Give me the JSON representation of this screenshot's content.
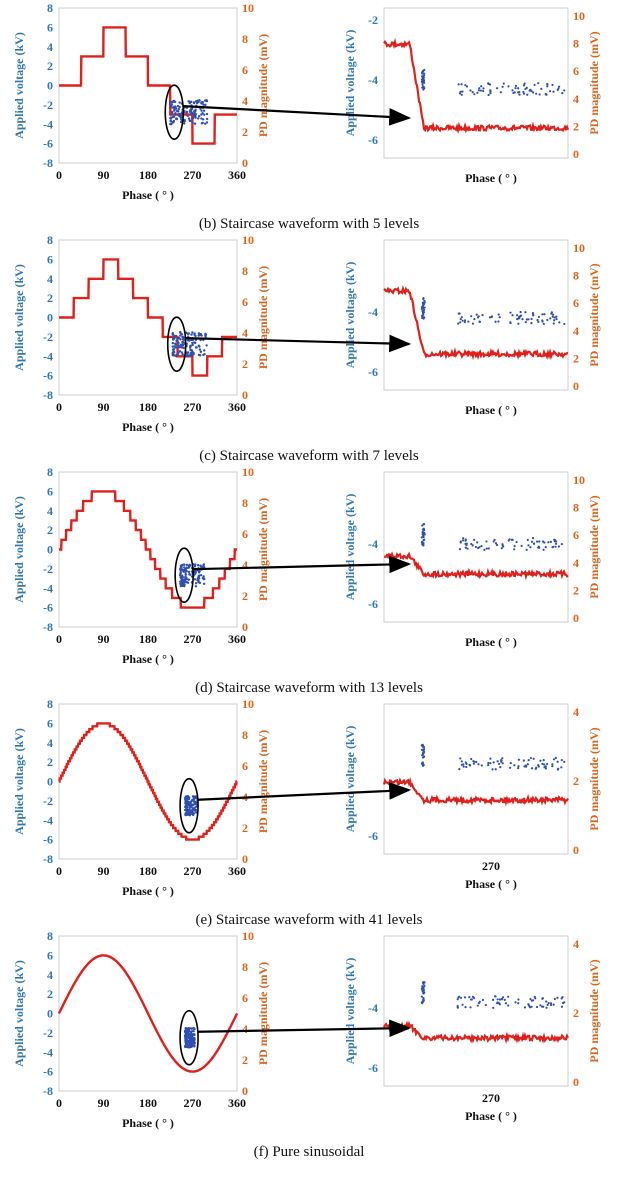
{
  "colors": {
    "voltage": "#e0201b",
    "pd": "#2f4fb0",
    "left_axis": "#2f78b4",
    "right_axis": "#d9641c",
    "arrow": "#000000"
  },
  "labels": {
    "y_left": "Applied voltage (kV)",
    "y_right": "PD magnitude (mV)",
    "x": "Phase ( ° )"
  },
  "chart_data": [
    {
      "id": "b",
      "type": "line",
      "caption": "(b) Staircase waveform with 5 levels",
      "levels": 5,
      "overview": {
        "xlim": [
          0,
          360
        ],
        "xticks": [
          0,
          90,
          180,
          270,
          360
        ],
        "ylim": [
          -8,
          8
        ],
        "yticks": [
          8,
          6,
          4,
          2,
          0,
          -2,
          -4,
          -6,
          -8
        ],
        "y2lim": [
          0,
          10
        ],
        "y2ticks": [
          10,
          8,
          6,
          4,
          2,
          0
        ],
        "voltage_series": {
          "name": "Applied voltage",
          "peak": 6,
          "step_values": [
            0,
            3,
            6,
            3,
            0,
            -3,
            -6,
            -3,
            0
          ]
        },
        "pd_cluster": {
          "phase_range": [
            225,
            300
          ],
          "voltage_range": [
            -4,
            -1.5
          ]
        }
      },
      "zoom": {
        "yticks": [
          -2,
          -4,
          -6
        ],
        "y2ticks": [
          10,
          8,
          6,
          4,
          2,
          0
        ],
        "pd_level": -4.3,
        "drop_from": -2.8,
        "drop_to": -5.6
      }
    },
    {
      "id": "c",
      "type": "line",
      "caption": "(c) Staircase waveform with 7 levels",
      "levels": 7,
      "overview": {
        "xlim": [
          0,
          360
        ],
        "xticks": [
          0,
          90,
          180,
          270,
          360
        ],
        "ylim": [
          -8,
          8
        ],
        "yticks": [
          8,
          6,
          4,
          2,
          0,
          -2,
          -4,
          -6,
          -8
        ],
        "y2lim": [
          0,
          10
        ],
        "y2ticks": [
          10,
          8,
          6,
          4,
          2,
          0
        ],
        "voltage_series": {
          "name": "Applied voltage",
          "peak": 6,
          "step_values": [
            0,
            2,
            4,
            6,
            4,
            2,
            0,
            -2,
            -4,
            -6,
            -4,
            -2,
            0
          ]
        },
        "pd_cluster": {
          "phase_range": [
            230,
            300
          ],
          "voltage_range": [
            -4,
            -1.5
          ]
        }
      },
      "zoom": {
        "yticks": [
          -4,
          -6
        ],
        "y2ticks": [
          10,
          8,
          6,
          4,
          2,
          0
        ],
        "pd_level": -4.2,
        "drop_from": -3.3,
        "drop_to": -5.4
      }
    },
    {
      "id": "d",
      "type": "line",
      "caption": "(d) Staircase waveform with 13 levels",
      "levels": 13,
      "overview": {
        "xlim": [
          0,
          360
        ],
        "xticks": [
          0,
          90,
          180,
          270,
          360
        ],
        "ylim": [
          -8,
          8
        ],
        "yticks": [
          8,
          6,
          4,
          2,
          0,
          -2,
          -4,
          -6,
          -8
        ],
        "y2lim": [
          0,
          10
        ],
        "y2ticks": [
          10,
          8,
          6,
          4,
          2,
          0
        ],
        "voltage_series": {
          "name": "Applied voltage",
          "peak": 6,
          "steps_per_quarter": 6
        },
        "pd_cluster": {
          "phase_range": [
            245,
            295
          ],
          "voltage_range": [
            -3.8,
            -1.5
          ]
        }
      },
      "zoom": {
        "yticks": [
          -4,
          -6
        ],
        "y2ticks": [
          10,
          8,
          6,
          4,
          2,
          0
        ],
        "pd_level": -4.0,
        "drop_from": -4.4,
        "drop_to": -5.0
      }
    },
    {
      "id": "e",
      "type": "line",
      "caption": "(e) Staircase waveform with 41 levels",
      "levels": 41,
      "overview": {
        "xlim": [
          0,
          360
        ],
        "xticks": [
          0,
          90,
          180,
          270,
          360
        ],
        "ylim": [
          -8,
          8
        ],
        "yticks": [
          8,
          6,
          4,
          2,
          0,
          -2,
          -4,
          -6,
          -8
        ],
        "y2lim": [
          0,
          10
        ],
        "y2ticks": [
          10,
          8,
          6,
          4,
          2,
          0
        ],
        "voltage_series": {
          "name": "Applied voltage",
          "peak": 6,
          "steps_per_quarter": 20
        },
        "pd_cluster": {
          "phase_range": [
            255,
            280
          ],
          "voltage_range": [
            -3.5,
            -1.5
          ]
        }
      },
      "zoom": {
        "xticks": [
          270
        ],
        "yticks": [
          -6
        ],
        "y2ticks": [
          4,
          2,
          0
        ],
        "pd_level": -3.6,
        "drop_from": -4.2,
        "drop_to": -4.8
      }
    },
    {
      "id": "f",
      "type": "line",
      "caption": "(f) Pure sinusoidal",
      "levels": 0,
      "overview": {
        "xlim": [
          0,
          360
        ],
        "xticks": [
          0,
          90,
          180,
          270,
          360
        ],
        "ylim": [
          -8,
          8
        ],
        "yticks": [
          8,
          6,
          4,
          2,
          0,
          -2,
          -4,
          -6,
          -8
        ],
        "y2lim": [
          0,
          10
        ],
        "y2ticks": [
          10,
          8,
          6,
          4,
          2,
          0
        ],
        "voltage_series": {
          "name": "Applied voltage",
          "peak": 6,
          "steps_per_quarter": 0
        },
        "pd_cluster": {
          "phase_range": [
            255,
            275
          ],
          "voltage_range": [
            -3.5,
            -1.5
          ]
        }
      },
      "zoom": {
        "xticks": [
          270
        ],
        "yticks": [
          -4,
          -6
        ],
        "y2ticks": [
          4,
          2,
          0
        ],
        "pd_level": -3.8,
        "drop_from": -4.6,
        "drop_to": -5.0
      }
    }
  ]
}
